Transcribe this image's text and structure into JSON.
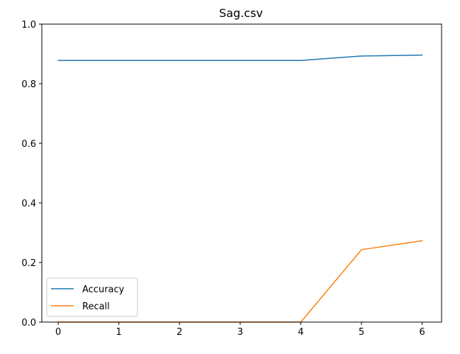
{
  "chart_data": {
    "type": "line",
    "title": "Sag.csv",
    "xlabel": "",
    "ylabel": "",
    "x": [
      0,
      1,
      2,
      3,
      4,
      5,
      6
    ],
    "xlim": [
      -0.27,
      6.32
    ],
    "ylim": [
      0.0,
      1.0
    ],
    "xticks": [
      "0",
      "1",
      "2",
      "3",
      "4",
      "5",
      "6"
    ],
    "yticks": [
      "0.0",
      "0.2",
      "0.4",
      "0.6",
      "0.8",
      "1.0"
    ],
    "grid": false,
    "legend_position": "lower-left",
    "series": [
      {
        "name": "Accuracy",
        "color": "#1f77b4",
        "values": [
          0.878,
          0.878,
          0.878,
          0.878,
          0.878,
          0.893,
          0.896
        ]
      },
      {
        "name": "Recall",
        "color": "#ff7f0e",
        "values": [
          0.0,
          0.0,
          0.0,
          0.0,
          0.0,
          0.243,
          0.273
        ]
      }
    ]
  }
}
